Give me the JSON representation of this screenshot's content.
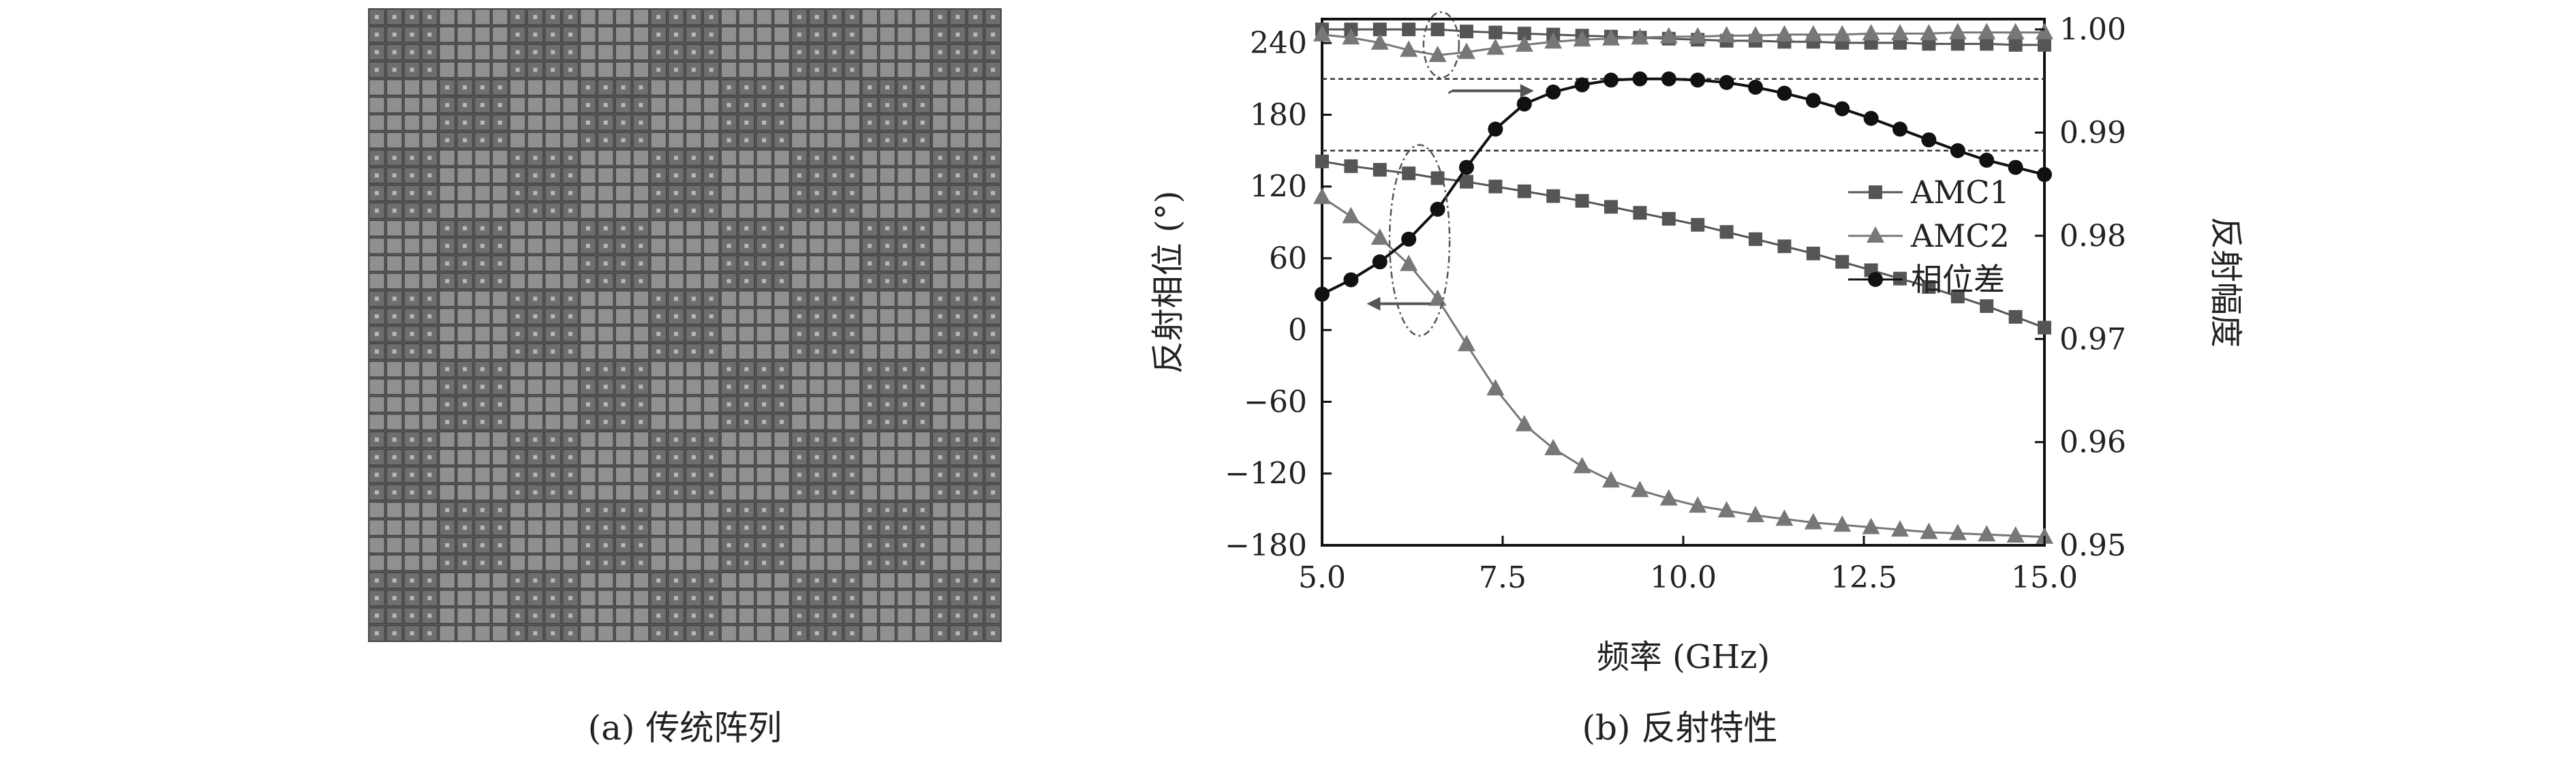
{
  "captions": {
    "a": "(a) 传统阵列",
    "b": "(b) 反射特性"
  },
  "panel_a": {
    "description_colors": {
      "background": "#5a5a5a",
      "dark_cell": "#6e6e6e",
      "light_cell": "#909090",
      "grid_line": "#444444",
      "dot": "#b8b8b8"
    },
    "block_pattern": [
      [
        0,
        1,
        0,
        1,
        0,
        1,
        0,
        1,
        0
      ],
      [
        1,
        0,
        1,
        0,
        1,
        0,
        1,
        0,
        1
      ],
      [
        0,
        1,
        0,
        1,
        0,
        1,
        0,
        1,
        0
      ],
      [
        1,
        0,
        1,
        0,
        1,
        0,
        1,
        0,
        1
      ],
      [
        0,
        1,
        0,
        1,
        0,
        1,
        0,
        1,
        0
      ],
      [
        1,
        0,
        1,
        0,
        1,
        0,
        1,
        0,
        1
      ],
      [
        0,
        1,
        0,
        1,
        0,
        1,
        0,
        1,
        0
      ],
      [
        1,
        0,
        1,
        0,
        1,
        0,
        1,
        0,
        1
      ],
      [
        0,
        1,
        0,
        1,
        0,
        1,
        0,
        1,
        0
      ]
    ]
  },
  "chart_data": {
    "type": "line",
    "xlabel": "频率 (GHz)",
    "ylabel_left": "反射相位 (°)",
    "ylabel_right": "反射幅度",
    "xlim": [
      5.0,
      15.0
    ],
    "ylim_left": [
      -180,
      260
    ],
    "ylim_right": [
      0.95,
      1.001
    ],
    "xticks": [
      "5.0",
      "7.5",
      "10.0",
      "12.5",
      "15.0"
    ],
    "yticks_left": [
      "240",
      "180",
      "120",
      "60",
      "0",
      "-60",
      "-120",
      "-180"
    ],
    "yticks_right": [
      "1.00",
      "0.99",
      "0.98",
      "0.97",
      "0.96",
      "0.95"
    ],
    "hlines_left": [
      210,
      150
    ],
    "legend": {
      "position": "right-middle",
      "entries": [
        "AMC1",
        "AMC2",
        "相位差"
      ]
    },
    "x": [
      5.0,
      5.4,
      5.8,
      6.2,
      6.6,
      7.0,
      7.4,
      7.8,
      8.2,
      8.6,
      9.0,
      9.4,
      9.8,
      10.2,
      10.6,
      11.0,
      11.4,
      11.8,
      12.2,
      12.6,
      13.0,
      13.4,
      13.8,
      14.2,
      14.6,
      15.0
    ],
    "series": [
      {
        "name": "AMC1",
        "axis": "left",
        "marker": "square",
        "color": "#555555",
        "values": [
          141,
          137,
          134,
          131,
          127,
          124,
          120,
          116,
          112,
          108,
          103,
          98,
          93,
          88,
          82,
          76,
          70,
          64,
          57,
          50,
          43,
          36,
          28,
          20,
          11,
          2
        ]
      },
      {
        "name": "AMC2",
        "axis": "left",
        "marker": "triangle",
        "color": "#777777",
        "values": [
          111,
          95,
          77,
          55,
          26,
          -12,
          -49,
          -79,
          -99,
          -114,
          -126,
          -134,
          -141,
          -147,
          -151,
          -155,
          -158,
          -161,
          -163,
          -165,
          -167,
          -169,
          -170,
          -171,
          -172,
          -173
        ]
      },
      {
        "name": "相位差",
        "axis": "left",
        "marker": "circle",
        "color": "#111111",
        "values": [
          30,
          42,
          57,
          76,
          101,
          136,
          168,
          189,
          199,
          205,
          209,
          210,
          210,
          209,
          207,
          203,
          198,
          192,
          185,
          177,
          168,
          159,
          150,
          142,
          136,
          130
        ]
      },
      {
        "name": "AMC1",
        "axis": "right",
        "marker": "square",
        "color": "#555555",
        "values": [
          1.0,
          1.0,
          1.0,
          1.0,
          1.0,
          0.9998,
          0.9997,
          0.9996,
          0.9995,
          0.9994,
          0.9993,
          0.9992,
          0.9991,
          0.999,
          0.9989,
          0.9989,
          0.9988,
          0.9988,
          0.9987,
          0.9987,
          0.9987,
          0.9986,
          0.9986,
          0.9986,
          0.9985,
          0.9985
        ]
      },
      {
        "name": "AMC2",
        "axis": "right",
        "marker": "triangle",
        "color": "#777777",
        "values": [
          0.9995,
          0.9992,
          0.9987,
          0.998,
          0.9975,
          0.9978,
          0.9982,
          0.9985,
          0.9988,
          0.999,
          0.9991,
          0.9992,
          0.9993,
          0.9993,
          0.9994,
          0.9994,
          0.9995,
          0.9995,
          0.9995,
          0.9996,
          0.9996,
          0.9996,
          0.9997,
          0.9997,
          0.9997,
          0.9997
        ]
      }
    ]
  }
}
